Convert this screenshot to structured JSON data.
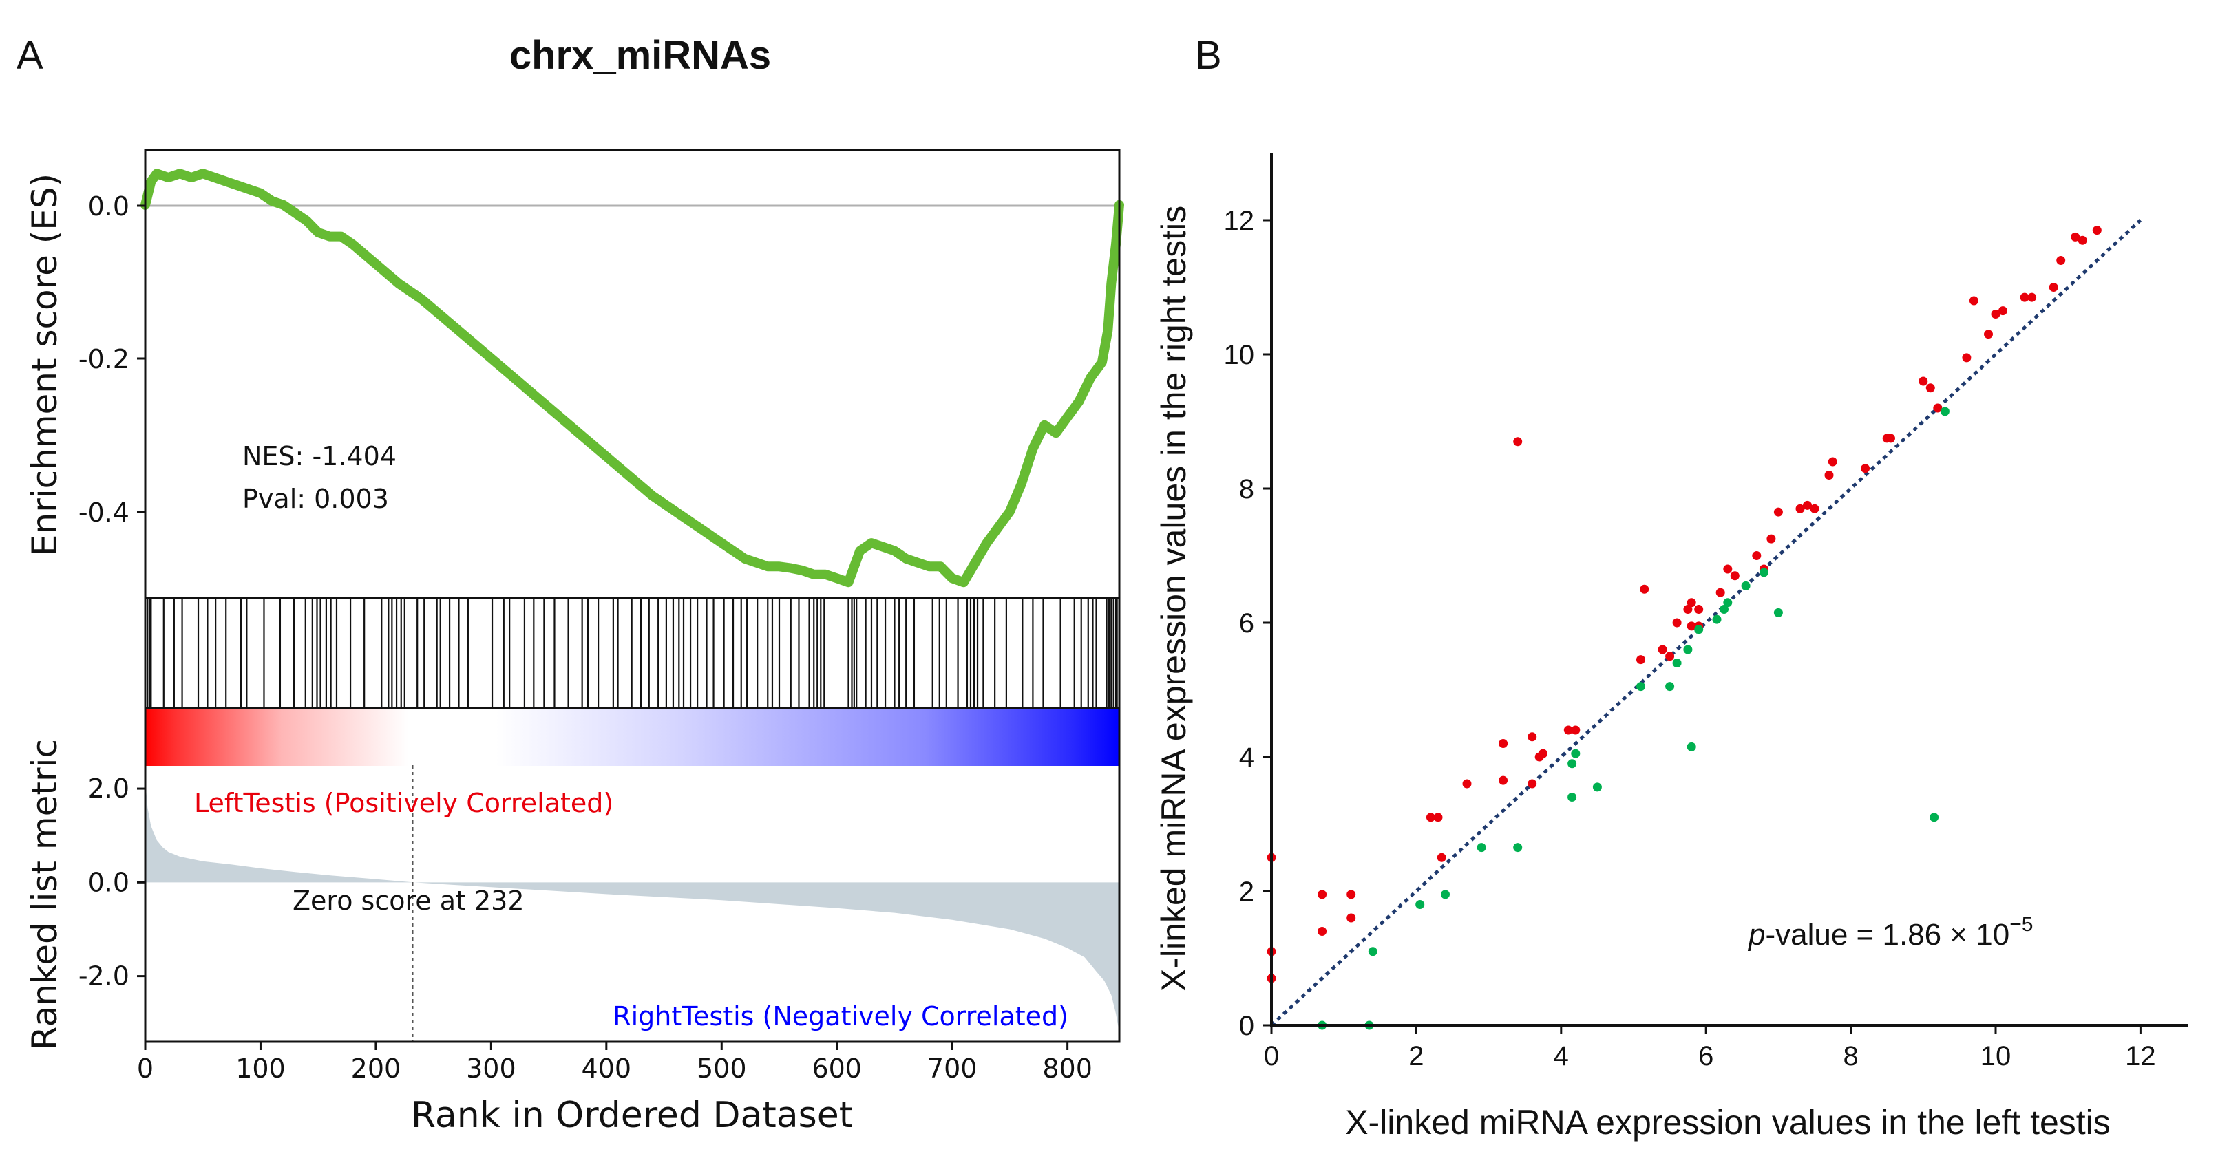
{
  "panels": {
    "a": {
      "letter": "A",
      "title": "chrx_miRNAs",
      "stats": {
        "nes": "NES: -1.404",
        "pval": "Pval: 0.003"
      },
      "zero_score": "Zero score at 232",
      "pos_label": "LeftTestis (Positively Correlated)",
      "neg_label": "RightTestis (Negatively Correlated)",
      "colors": {
        "es_line": "#66bb33",
        "pos": "#ff0000",
        "neg": "#0000ff",
        "metric_fill": "#c8d3da"
      }
    },
    "b": {
      "letter": "B",
      "pvalue": {
        "prefix": "p",
        "middle": "-value = 1.86 × 10",
        "exponent": "−5"
      },
      "colors": {
        "up": "#e8000b",
        "down": "#00b050",
        "diagonal": "#1f3a6e"
      }
    }
  },
  "chart_data": [
    {
      "type": "line",
      "title": "chrx_miRNAs",
      "ylabel": "Enrichment score (ES)",
      "xlim": [
        0,
        845
      ],
      "ylim": [
        -0.5,
        0.07
      ],
      "yticks": [
        0.0,
        -0.2,
        -0.4
      ],
      "ytick_labels": [
        "0.0",
        "-0.2",
        "-0.4"
      ],
      "series": [
        {
          "x": [
            0,
            5,
            10,
            20,
            30,
            40,
            50,
            60,
            70,
            80,
            90,
            100,
            110,
            120,
            130,
            140,
            150,
            160,
            170,
            180,
            200,
            220,
            240,
            260,
            280,
            300,
            320,
            340,
            360,
            380,
            400,
            420,
            440,
            460,
            480,
            500,
            520,
            540,
            550,
            560,
            570,
            580,
            590,
            600,
            610,
            615,
            620,
            630,
            640,
            650,
            660,
            670,
            680,
            690,
            700,
            710,
            720,
            730,
            740,
            750,
            760,
            770,
            780,
            790,
            800,
            810,
            820,
            830,
            835,
            838,
            842,
            845
          ],
          "values": [
            0.0,
            0.03,
            0.04,
            0.035,
            0.04,
            0.035,
            0.04,
            0.035,
            0.03,
            0.025,
            0.02,
            0.015,
            0.005,
            0.0,
            -0.01,
            -0.02,
            -0.035,
            -0.04,
            -0.04,
            -0.05,
            -0.075,
            -0.1,
            -0.12,
            -0.145,
            -0.17,
            -0.195,
            -0.22,
            -0.245,
            -0.27,
            -0.295,
            -0.32,
            -0.345,
            -0.37,
            -0.39,
            -0.41,
            -0.43,
            -0.45,
            -0.46,
            -0.46,
            -0.462,
            -0.465,
            -0.47,
            -0.47,
            -0.475,
            -0.48,
            -0.46,
            -0.44,
            -0.43,
            -0.435,
            -0.44,
            -0.45,
            -0.455,
            -0.46,
            -0.46,
            -0.475,
            -0.48,
            -0.455,
            -0.43,
            -0.41,
            -0.39,
            -0.355,
            -0.31,
            -0.28,
            -0.29,
            -0.27,
            -0.25,
            -0.22,
            -0.2,
            -0.16,
            -0.1,
            -0.05,
            0.0
          ]
        }
      ]
    },
    {
      "type": "heatmap",
      "description_free": true,
      "hits": [
        2,
        4,
        5,
        16,
        25,
        32,
        46,
        54,
        61,
        70,
        83,
        88,
        103,
        117,
        129,
        139,
        145,
        149,
        152,
        157,
        161,
        166,
        178,
        190,
        205,
        211,
        214,
        218,
        222,
        225,
        236,
        242,
        253,
        256,
        264,
        272,
        280,
        301,
        311,
        316,
        329,
        337,
        346,
        355,
        367,
        379,
        384,
        393,
        406,
        410,
        422,
        430,
        437,
        445,
        452,
        458,
        463,
        467,
        473,
        479,
        487,
        493,
        502,
        510,
        517,
        522,
        531,
        540,
        544,
        550,
        560,
        567,
        576,
        580,
        583,
        586,
        589,
        610,
        613,
        615,
        617,
        625,
        630,
        635,
        642,
        650,
        654,
        660,
        667,
        683,
        689,
        695,
        705,
        713,
        716,
        719,
        722,
        727,
        737,
        747,
        761,
        770,
        779,
        794,
        806,
        812,
        818,
        822,
        825,
        834,
        836,
        838,
        840,
        842,
        843,
        845
      ]
    },
    {
      "type": "area",
      "ylabel": "Ranked list metric",
      "xlabel": "Rank in Ordered Dataset",
      "xlim": [
        0,
        845
      ],
      "ylim": [
        -3.4,
        2.5
      ],
      "xticks": [
        0,
        100,
        200,
        300,
        400,
        500,
        600,
        700,
        800
      ],
      "xtick_labels": [
        "0",
        "100",
        "200",
        "300",
        "400",
        "500",
        "600",
        "700",
        "800"
      ],
      "yticks": [
        2.0,
        0.0,
        -2.0
      ],
      "ytick_labels": [
        "2.0",
        "0.0",
        "-2.0"
      ],
      "zero_cross": 232,
      "x": [
        0,
        2,
        5,
        10,
        15,
        20,
        30,
        50,
        75,
        100,
        130,
        160,
        200,
        232,
        300,
        400,
        500,
        600,
        650,
        700,
        750,
        780,
        800,
        815,
        825,
        832,
        838,
        842,
        845
      ],
      "values": [
        2.2,
        1.6,
        1.2,
        0.9,
        0.75,
        0.65,
        0.55,
        0.45,
        0.38,
        0.3,
        0.22,
        0.15,
        0.07,
        0.0,
        -0.1,
        -0.25,
        -0.38,
        -0.55,
        -0.65,
        -0.8,
        -1.0,
        -1.2,
        -1.4,
        -1.6,
        -1.9,
        -2.1,
        -2.4,
        -2.8,
        -3.2
      ]
    },
    {
      "type": "scatter",
      "xlabel": "X-linked miRNA expression values in the left testis",
      "ylabel": "X-linked miRNA expression values in the right testis",
      "xlim": [
        0,
        12.6
      ],
      "ylim": [
        0,
        13
      ],
      "xticks": [
        0,
        2,
        4,
        6,
        8,
        10,
        12
      ],
      "xtick_labels": [
        "0",
        "2",
        "4",
        "6",
        "8",
        "10",
        "12"
      ],
      "yticks": [
        0,
        2,
        4,
        6,
        8,
        10,
        12
      ],
      "ytick_labels": [
        "0",
        "2",
        "4",
        "6",
        "8",
        "10",
        "12"
      ],
      "reference_line": {
        "x": [
          0,
          12
        ],
        "y": [
          0,
          12
        ]
      },
      "series": [
        {
          "color": "#e8000b",
          "points": [
            [
              0.0,
              2.5
            ],
            [
              0.0,
              1.1
            ],
            [
              0.0,
              0.7
            ],
            [
              0.7,
              1.95
            ],
            [
              0.7,
              1.4
            ],
            [
              1.1,
              1.95
            ],
            [
              1.1,
              1.6
            ],
            [
              2.2,
              3.1
            ],
            [
              2.3,
              3.1
            ],
            [
              2.35,
              2.5
            ],
            [
              2.7,
              3.6
            ],
            [
              3.2,
              4.2
            ],
            [
              3.2,
              3.65
            ],
            [
              3.4,
              8.7
            ],
            [
              3.6,
              4.3
            ],
            [
              3.6,
              3.6
            ],
            [
              3.7,
              4.0
            ],
            [
              3.75,
              4.05
            ],
            [
              4.1,
              4.4
            ],
            [
              4.2,
              4.4
            ],
            [
              5.1,
              5.45
            ],
            [
              5.15,
              6.5
            ],
            [
              5.4,
              5.6
            ],
            [
              5.5,
              5.5
            ],
            [
              5.6,
              6.0
            ],
            [
              5.75,
              6.2
            ],
            [
              5.8,
              6.3
            ],
            [
              5.8,
              5.95
            ],
            [
              5.9,
              5.95
            ],
            [
              5.9,
              6.2
            ],
            [
              6.2,
              6.45
            ],
            [
              6.3,
              6.8
            ],
            [
              6.4,
              6.7
            ],
            [
              6.7,
              7.0
            ],
            [
              6.8,
              6.8
            ],
            [
              6.9,
              7.25
            ],
            [
              7.0,
              7.65
            ],
            [
              7.3,
              7.7
            ],
            [
              7.4,
              7.75
            ],
            [
              7.5,
              7.7
            ],
            [
              7.7,
              8.2
            ],
            [
              7.75,
              8.4
            ],
            [
              8.2,
              8.3
            ],
            [
              8.5,
              8.75
            ],
            [
              8.55,
              8.75
            ],
            [
              9.0,
              9.6
            ],
            [
              9.1,
              9.5
            ],
            [
              9.2,
              9.2
            ],
            [
              9.6,
              9.95
            ],
            [
              9.7,
              10.8
            ],
            [
              9.9,
              10.3
            ],
            [
              10.0,
              10.6
            ],
            [
              10.1,
              10.65
            ],
            [
              10.4,
              10.85
            ],
            [
              10.5,
              10.85
            ],
            [
              10.8,
              11.0
            ],
            [
              10.9,
              11.4
            ],
            [
              11.1,
              11.75
            ],
            [
              11.2,
              11.7
            ],
            [
              11.4,
              11.85
            ]
          ]
        },
        {
          "color": "#00b050",
          "points": [
            [
              0.7,
              0.0
            ],
            [
              1.35,
              0.0
            ],
            [
              1.4,
              1.1
            ],
            [
              2.05,
              1.8
            ],
            [
              2.4,
              1.95
            ],
            [
              2.9,
              2.65
            ],
            [
              3.4,
              2.65
            ],
            [
              4.15,
              3.4
            ],
            [
              4.15,
              3.9
            ],
            [
              4.2,
              4.05
            ],
            [
              4.5,
              3.55
            ],
            [
              5.1,
              5.05
            ],
            [
              5.5,
              5.05
            ],
            [
              5.6,
              5.4
            ],
            [
              5.75,
              5.6
            ],
            [
              5.8,
              4.15
            ],
            [
              5.9,
              5.9
            ],
            [
              6.15,
              6.05
            ],
            [
              6.25,
              6.2
            ],
            [
              6.3,
              6.3
            ],
            [
              6.55,
              6.55
            ],
            [
              6.8,
              6.75
            ],
            [
              7.0,
              6.15
            ],
            [
              9.15,
              3.1
            ],
            [
              9.3,
              9.15
            ]
          ]
        }
      ]
    }
  ]
}
